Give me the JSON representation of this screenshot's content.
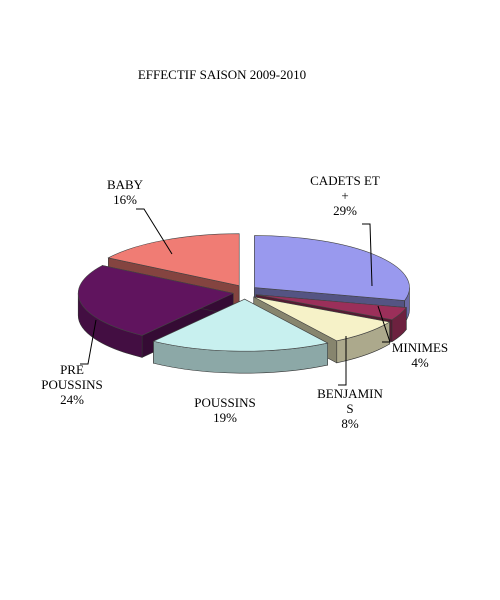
{
  "chart_data": {
    "type": "pie",
    "style": "3d-exploded",
    "title": "EFFECTIF SAISON 2009-2010",
    "slices": [
      {
        "label_lines": [
          "CADETS ET",
          "+"
        ],
        "value": 29,
        "value_label": "29%",
        "color": "#9999ee"
      },
      {
        "label_lines": [
          "MINIMES"
        ],
        "value": 4,
        "value_label": "4%",
        "color": "#9b2f5a"
      },
      {
        "label_lines": [
          "BENJAMIN",
          "S"
        ],
        "value": 8,
        "value_label": "8%",
        "color": "#f6f2c8"
      },
      {
        "label_lines": [
          "POUSSINS"
        ],
        "value": 19,
        "value_label": "19%",
        "color": "#c8f0ef"
      },
      {
        "label_lines": [
          "PRE",
          "POUSSINS"
        ],
        "value": 24,
        "value_label": "24%",
        "color": "#60145e"
      },
      {
        "label_lines": [
          "BABY"
        ],
        "value": 16,
        "value_label": "16%",
        "color": "#f07c74"
      }
    ],
    "legend": "none"
  }
}
